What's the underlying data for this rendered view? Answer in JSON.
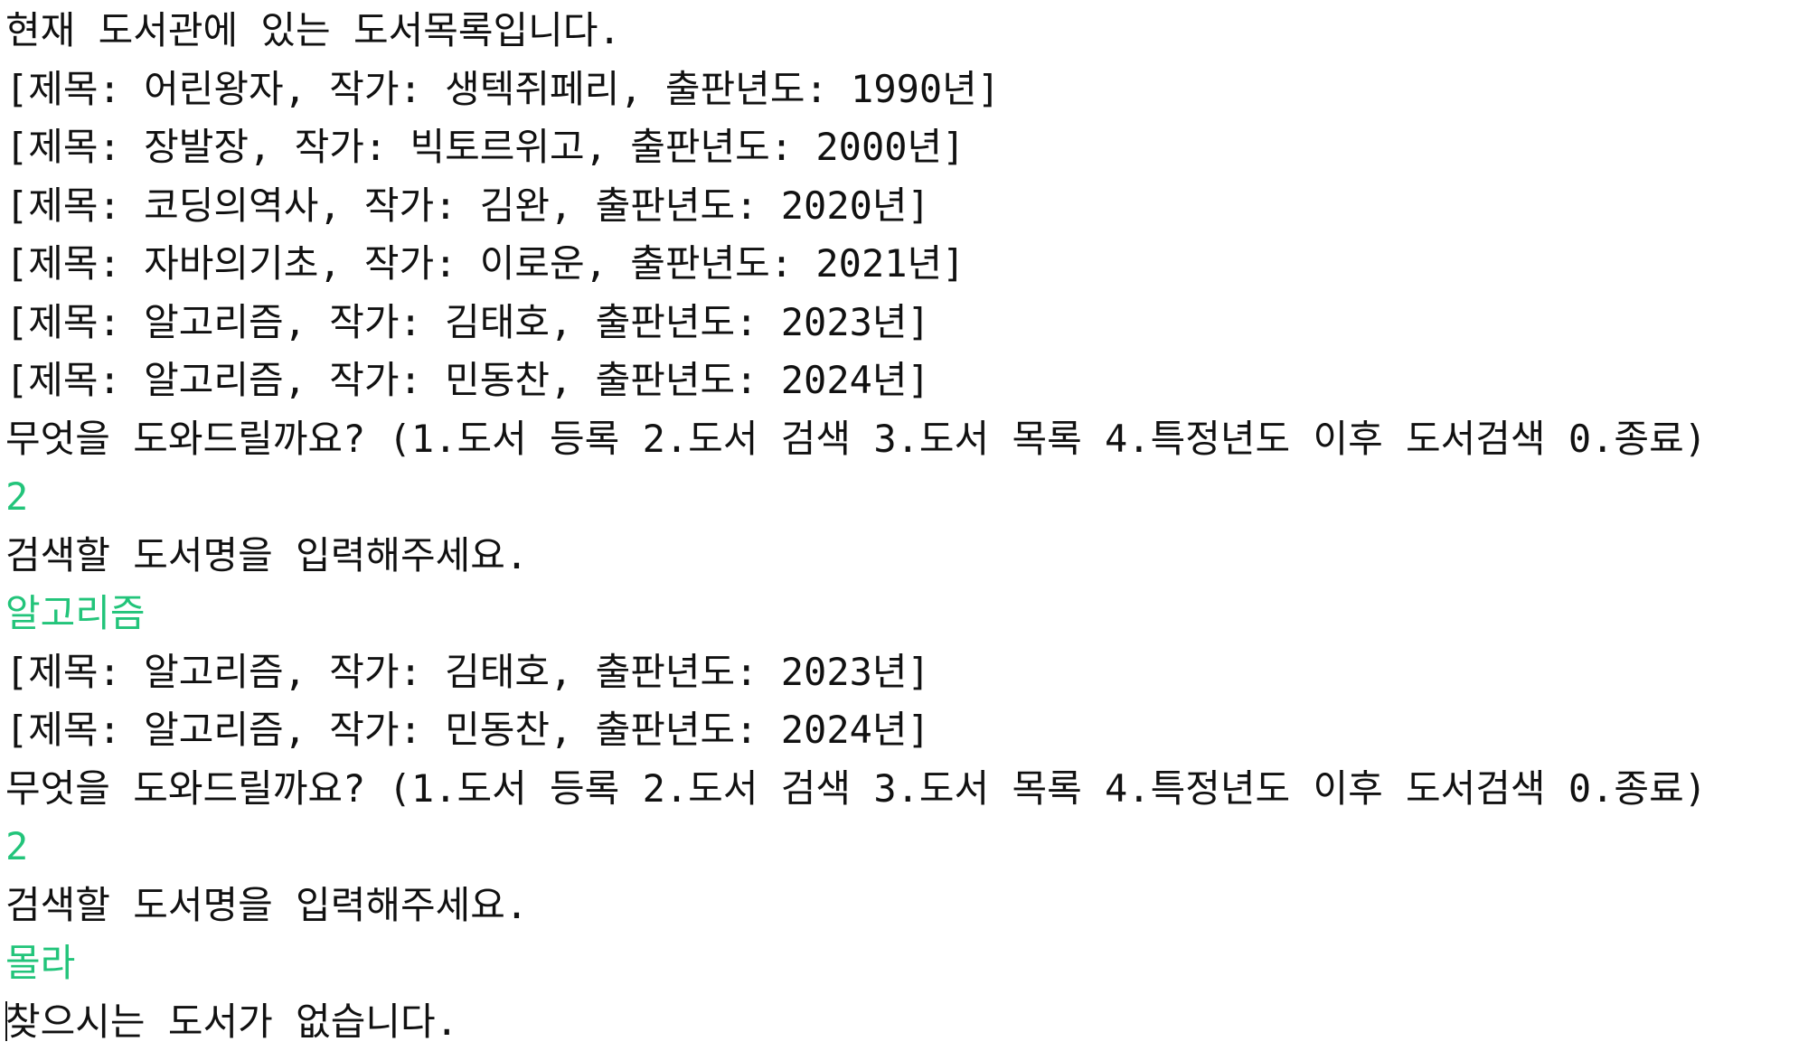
{
  "console": {
    "lines": [
      {
        "text": "현재 도서관에 있는 도서목록입니다.",
        "kind": "output"
      },
      {
        "text": "[제목: 어린왕자, 작가: 생텍쥐페리, 출판년도: 1990년]",
        "kind": "output"
      },
      {
        "text": "[제목: 장발장, 작가: 빅토르위고, 출판년도: 2000년]",
        "kind": "output"
      },
      {
        "text": "[제목: 코딩의역사, 작가: 김완, 출판년도: 2020년]",
        "kind": "output"
      },
      {
        "text": "[제목: 자바의기초, 작가: 이로운, 출판년도: 2021년]",
        "kind": "output"
      },
      {
        "text": "[제목: 알고리즘, 작가: 김태호, 출판년도: 2023년]",
        "kind": "output"
      },
      {
        "text": "[제목: 알고리즘, 작가: 민동찬, 출판년도: 2024년]",
        "kind": "output"
      },
      {
        "text": "무엇을 도와드릴까요? (1.도서 등록 2.도서 검색 3.도서 목록 4.특정년도 이후 도서검색 0.종료)",
        "kind": "output"
      },
      {
        "text": "2",
        "kind": "input"
      },
      {
        "text": "검색할 도서명을 입력해주세요.",
        "kind": "output"
      },
      {
        "text": "알고리즘",
        "kind": "input"
      },
      {
        "text": "[제목: 알고리즘, 작가: 김태호, 출판년도: 2023년]",
        "kind": "output"
      },
      {
        "text": "[제목: 알고리즘, 작가: 민동찬, 출판년도: 2024년]",
        "kind": "output"
      },
      {
        "text": "무엇을 도와드릴까요? (1.도서 등록 2.도서 검색 3.도서 목록 4.특정년도 이후 도서검색 0.종료)",
        "kind": "output"
      },
      {
        "text": "2",
        "kind": "input"
      },
      {
        "text": "검색할 도서명을 입력해주세요.",
        "kind": "output"
      },
      {
        "text": "몰라",
        "kind": "input"
      },
      {
        "text": "찾으시는 도서가 없습니다.",
        "kind": "output"
      }
    ]
  },
  "colors": {
    "background": "#ffffff",
    "output_text": "#111111",
    "input_text": "#22c47a"
  }
}
